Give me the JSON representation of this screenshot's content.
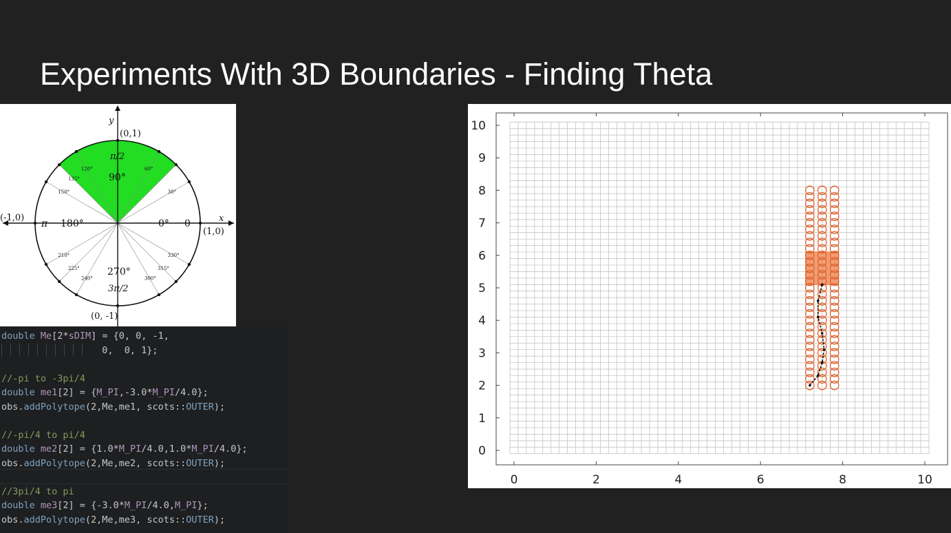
{
  "slide": {
    "title": "Experiments With 3D Boundaries - Finding Theta"
  },
  "unit_circle": {
    "axis_x": "x",
    "axis_y": "y",
    "points": {
      "top": "(0,1)",
      "bottom": "(0, -1)",
      "left": "(-1,0)",
      "right": "(1,0)"
    },
    "degrees": {
      "d0": "0°",
      "d90": "90°",
      "d180": "180°",
      "d270": "270°",
      "small": [
        "30°",
        "60°",
        "120°",
        "135°",
        "150°",
        "210°",
        "225°",
        "240°",
        "300°",
        "315°",
        "330°"
      ]
    },
    "radians": {
      "r0": "0",
      "pi": "π",
      "pi_2": "π/2",
      "three_pi_2": "3π/2"
    },
    "highlight_color": "#22dd22",
    "highlight_range_deg": [
      45,
      135
    ]
  },
  "code": {
    "lines": [
      [
        {
          "t": "double ",
          "c": "kw"
        },
        {
          "t": "Me",
          "c": "var"
        },
        {
          "t": "[2*",
          "c": "pl"
        },
        {
          "t": "sDIM",
          "c": "var"
        },
        {
          "t": "] = {0, 0, -1,",
          "c": "pl"
        }
      ],
      [
        {
          "t": "          0,  0, 1};",
          "c": "pl"
        }
      ],
      [],
      [
        {
          "t": "//-pi to -3pi/4",
          "c": "cmt"
        }
      ],
      [
        {
          "t": "double ",
          "c": "kw"
        },
        {
          "t": "me1",
          "c": "var"
        },
        {
          "t": "[2] = {",
          "c": "pl"
        },
        {
          "t": "M_PI",
          "c": "var"
        },
        {
          "t": ",-3.0*",
          "c": "pl"
        },
        {
          "t": "M_PI",
          "c": "var"
        },
        {
          "t": "/4.0};",
          "c": "pl"
        }
      ],
      [
        {
          "t": "obs.",
          "c": "pl"
        },
        {
          "t": "addPolytope",
          "c": "fn"
        },
        {
          "t": "(2,Me,me1, scots::",
          "c": "pl"
        },
        {
          "t": "OUTER",
          "c": "kw"
        },
        {
          "t": ");",
          "c": "pl"
        }
      ],
      [],
      [
        {
          "t": "//-pi/4 to pi/4",
          "c": "cmt"
        }
      ],
      [
        {
          "t": "double ",
          "c": "kw"
        },
        {
          "t": "me2",
          "c": "var"
        },
        {
          "t": "[2] = {1.0*",
          "c": "pl"
        },
        {
          "t": "M_PI",
          "c": "var"
        },
        {
          "t": "/4.0,1.0*",
          "c": "pl"
        },
        {
          "t": "M_PI",
          "c": "var"
        },
        {
          "t": "/4.0};",
          "c": "pl"
        }
      ],
      [
        {
          "t": "obs.",
          "c": "pl"
        },
        {
          "t": "addPolytope",
          "c": "fn"
        },
        {
          "t": "(2,Me,me2, scots::",
          "c": "pl"
        },
        {
          "t": "OUTER",
          "c": "kw"
        },
        {
          "t": ");",
          "c": "pl"
        }
      ],
      [],
      [
        {
          "t": "//3pi/4 to pi",
          "c": "cmt"
        }
      ],
      [
        {
          "t": "double ",
          "c": "kw"
        },
        {
          "t": "me3",
          "c": "var"
        },
        {
          "t": "[2] = {-3.0*",
          "c": "pl"
        },
        {
          "t": "M_PI",
          "c": "var"
        },
        {
          "t": "/4.0,",
          "c": "pl"
        },
        {
          "t": "M_PI",
          "c": "var"
        },
        {
          "t": "};",
          "c": "pl"
        }
      ],
      [
        {
          "t": "obs.",
          "c": "pl"
        },
        {
          "t": "addPolytope",
          "c": "fn"
        },
        {
          "t": "(2,Me,me3, scots::",
          "c": "pl"
        },
        {
          "t": "OUTER",
          "c": "kw"
        },
        {
          "t": ");",
          "c": "pl"
        }
      ]
    ]
  },
  "chart_data": {
    "type": "scatter",
    "title": "",
    "xlabel": "",
    "ylabel": "",
    "xlim": [
      0,
      10.2
    ],
    "ylim": [
      0,
      10.2
    ],
    "xticks": [
      "0",
      "2",
      "4",
      "6",
      "8",
      "10"
    ],
    "yticks": [
      "0",
      "1",
      "2",
      "3",
      "4",
      "5",
      "6",
      "7",
      "8",
      "9",
      "10"
    ],
    "grid_spacing": 0.2,
    "grid_color": "#bbbbbb",
    "circle_color": "#e0602a",
    "target_color": "#f08c5a",
    "circle_columns_x": [
      7.2,
      7.5,
      7.8
    ],
    "circle_range_y": [
      2.0,
      8.1
    ],
    "circle_step_y": 0.2,
    "target_region": {
      "x": [
        7.1,
        7.9
      ],
      "y": [
        5.1,
        6.1
      ]
    },
    "trajectory": [
      [
        7.2,
        2.0
      ],
      [
        7.4,
        2.3
      ],
      [
        7.5,
        2.7
      ],
      [
        7.55,
        3.1
      ],
      [
        7.5,
        3.6
      ],
      [
        7.4,
        4.1
      ],
      [
        7.4,
        4.6
      ],
      [
        7.5,
        5.1
      ]
    ]
  }
}
